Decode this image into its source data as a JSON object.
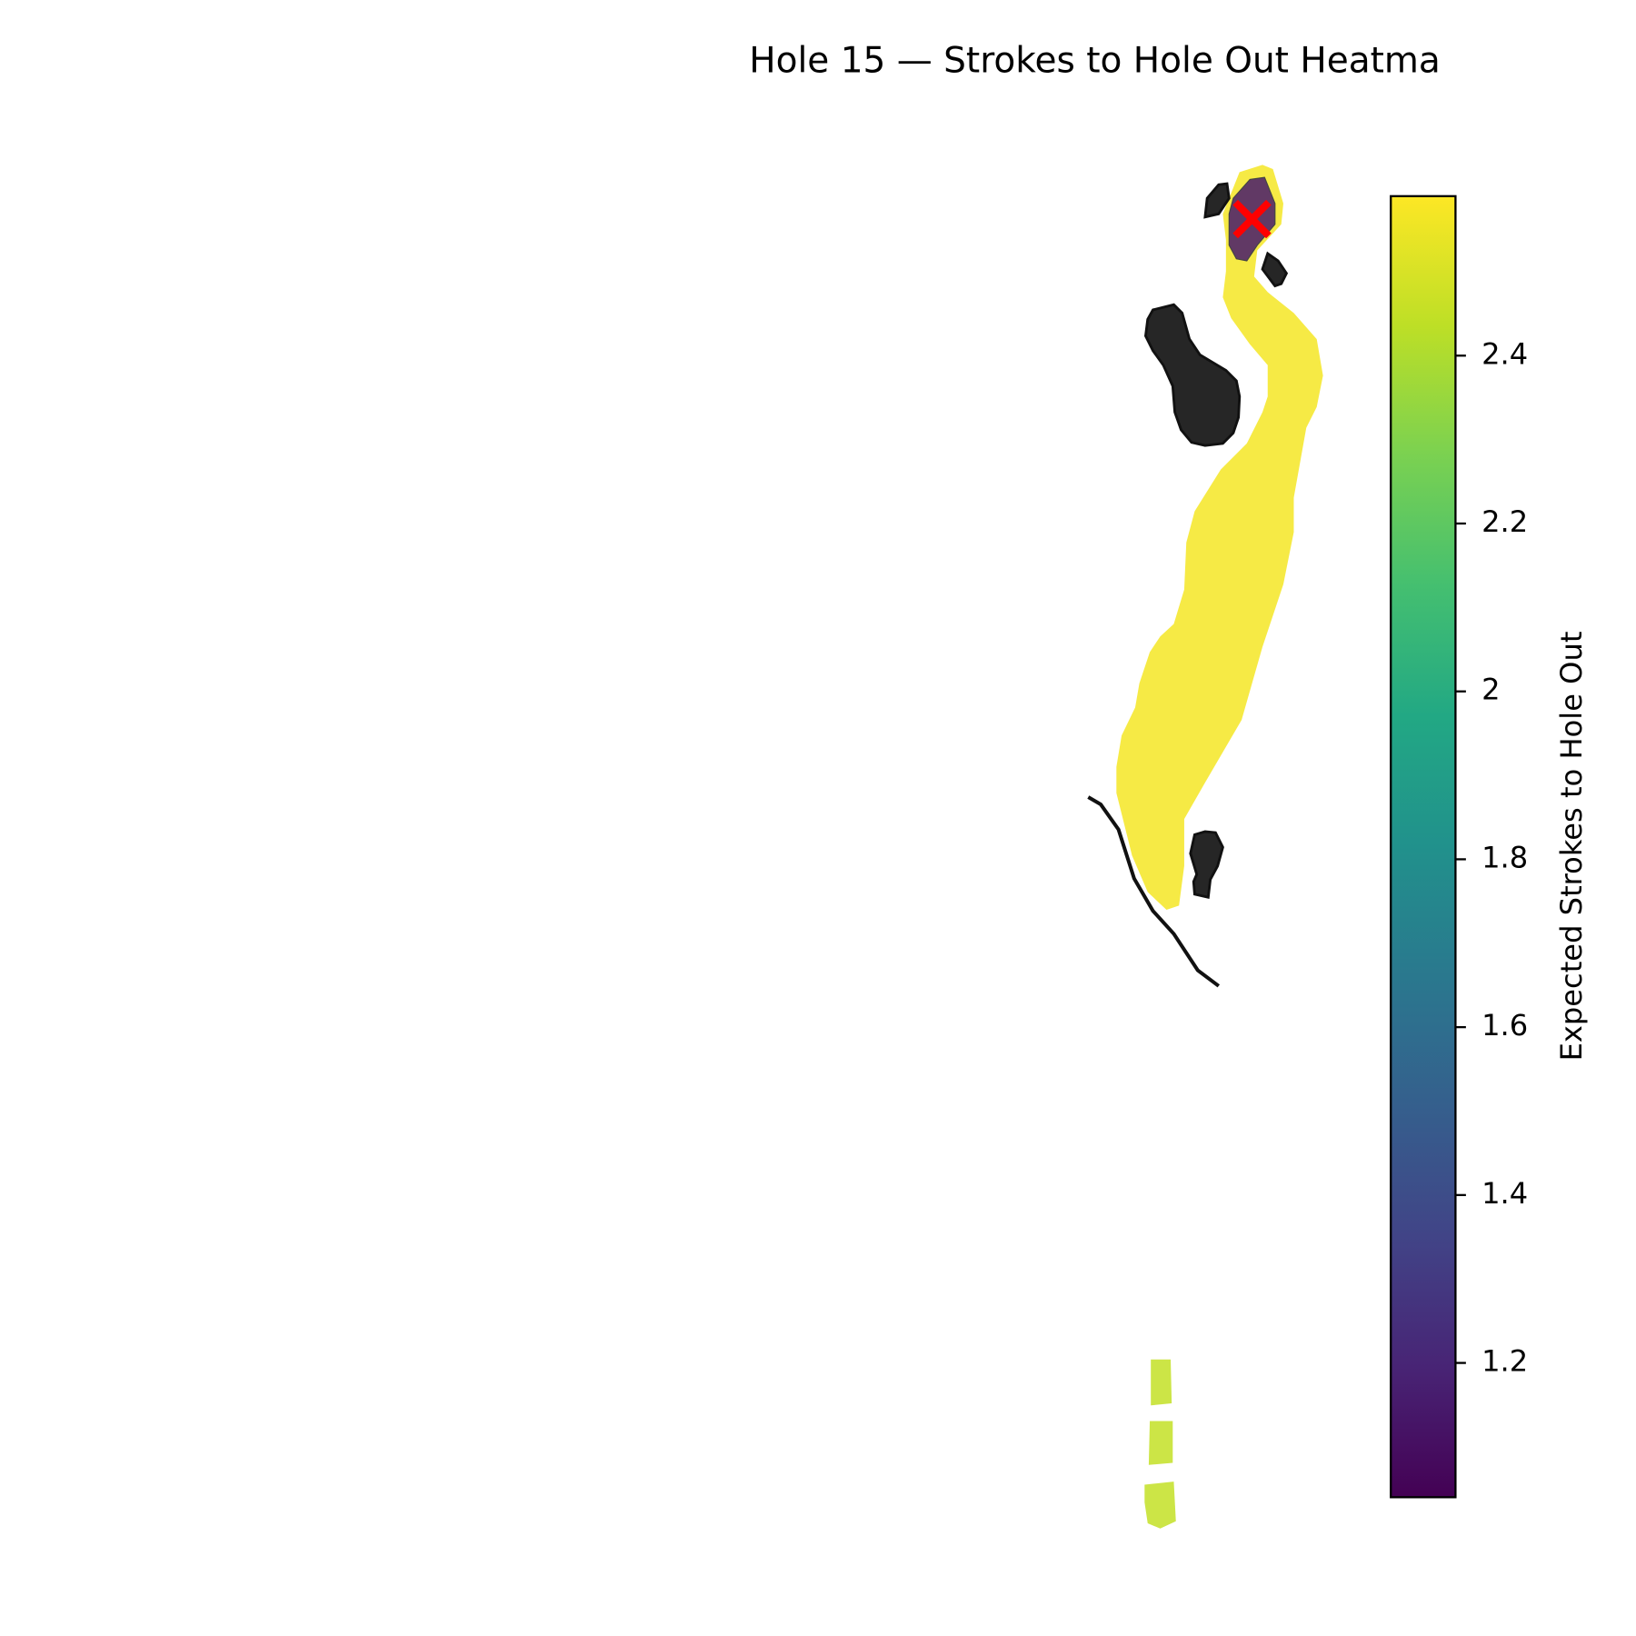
{
  "chart_data": {
    "type": "heatmap",
    "title": "Hole 15 — Strokes to Hole Out Heatma",
    "colorbar_label": "Expected Strokes to Hole Out",
    "colormap": "viridis",
    "values": [
      2.57,
      1.15,
      2.45,
      2.45,
      2.45
    ],
    "clim": [
      1.04,
      2.59
    ],
    "cticks": [
      1.2,
      1.4,
      1.6,
      1.8,
      2.0,
      2.2,
      2.4
    ]
  }
}
